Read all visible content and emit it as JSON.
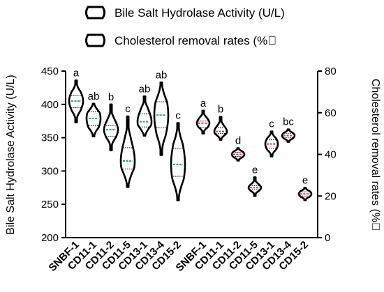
{
  "chart_data": {
    "type": "violin",
    "legend": {
      "placement": "top-center",
      "entries": [
        "Bile Salt Hydrolase Activity (U/L)",
        "Cholesterol removal rates (%\u0000"
      ]
    },
    "left_axis": {
      "label": "Bile Salt Hydrolase Activity (U/L)",
      "ylim": [
        200,
        450
      ],
      "ticks": [
        "200",
        "250",
        "300",
        "350",
        "400",
        "450"
      ]
    },
    "right_axis": {
      "label": "Cholesterol removal rates (%\u0000",
      "ylim": [
        0,
        80
      ],
      "ticks": [
        "0",
        "20",
        "40",
        "60",
        "80"
      ]
    },
    "median_colors": {
      "bsh": "#2aa08a",
      "chol": "#e8336e"
    },
    "series": [
      {
        "name": "Bile Salt Hydrolase Activity (U/L)",
        "axis": "left",
        "categories": [
          "SNBF-1",
          "CD11-1",
          "CD11-2",
          "CD11-5",
          "CD13-1",
          "CD13-4",
          "CD15-2"
        ],
        "significance": [
          "a",
          "ab",
          "b",
          "c",
          "ab",
          "ab",
          "c"
        ],
        "medians": [
          405,
          379,
          362,
          315,
          374,
          384,
          310
        ],
        "q1": [
          395,
          368,
          352,
          303,
          366,
          365,
          292
        ],
        "q3": [
          413,
          389,
          368,
          335,
          386,
          404,
          334
        ],
        "min": [
          373,
          352,
          331,
          276,
          353,
          324,
          256
        ],
        "max": [
          436,
          401,
          400,
          382,
          412,
          433,
          372
        ]
      },
      {
        "name": "Cholesterol removal rates (%\u0000",
        "axis": "right",
        "categories": [
          "SNBF-1",
          "CD11-1",
          "CD11-2",
          "CD11-5",
          "CD13-1",
          "CD13-4",
          "CD15-2"
        ],
        "significance": [
          "a",
          "b",
          "d",
          "e",
          "c",
          "bc",
          "e"
        ],
        "medians": [
          55,
          51,
          40,
          24,
          45,
          49,
          21
        ],
        "q1": [
          53,
          50,
          39,
          23,
          43,
          48,
          20
        ],
        "q3": [
          56,
          53,
          41,
          25,
          47,
          50,
          22
        ],
        "min": [
          50,
          47,
          37,
          20,
          39,
          46,
          18
        ],
        "max": [
          61,
          58,
          43,
          29,
          51,
          52,
          24
        ]
      }
    ]
  }
}
